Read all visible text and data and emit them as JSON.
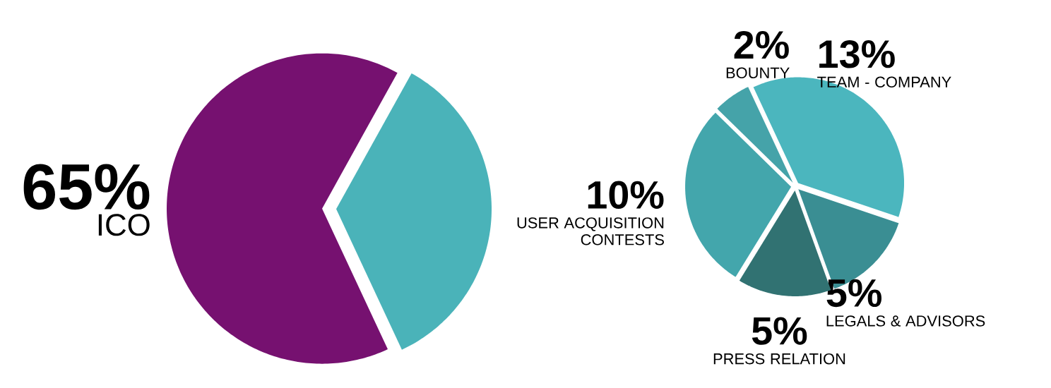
{
  "chart_data": [
    {
      "type": "pie",
      "categories": [
        "ICO",
        null
      ],
      "values": [
        65,
        35
      ],
      "colors": [
        "#761170",
        "#4ab3b9"
      ],
      "value_labels": [
        "65%",
        null
      ]
    },
    {
      "type": "pie",
      "categories": [
        "TEAM - COMPANY",
        "LEGALS & ADVISORS",
        "PRESS RELATION",
        "USER ACQUISITION CONTESTS",
        "BOUNTY"
      ],
      "values": [
        13,
        5,
        5,
        10,
        2
      ],
      "colors": [
        "#4bb6be",
        "#3a8e93",
        "#317272",
        "#43a6ac",
        "#45a3a9"
      ],
      "value_labels": [
        "13%",
        "5%",
        "5%",
        "10%",
        "2%"
      ]
    }
  ]
}
